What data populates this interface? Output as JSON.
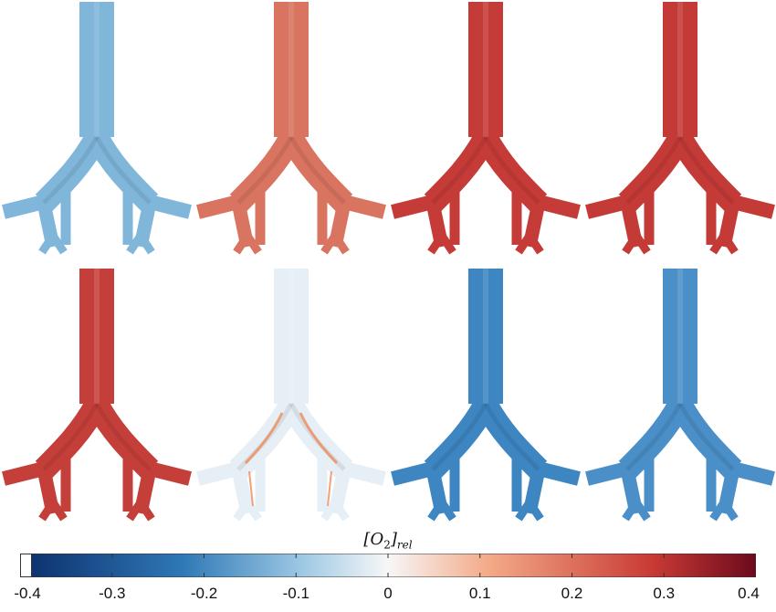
{
  "panels": [
    {
      "id": "r1c1",
      "color": "#7fb6da"
    },
    {
      "id": "r1c2",
      "color": "#d8745f"
    },
    {
      "id": "r1c3",
      "color": "#c53b38"
    },
    {
      "id": "r1c4",
      "color": "#c43a37"
    },
    {
      "id": "r2c1",
      "color": "#c53f3a"
    },
    {
      "id": "r2c2",
      "color": "#e6eff6",
      "accent": "#f08a5a"
    },
    {
      "id": "r2c3",
      "color": "#3d86c2"
    },
    {
      "id": "r2c4",
      "color": "#4a8fc7"
    }
  ],
  "colorbar": {
    "label": "[O2]rel",
    "ticks": [
      "-0.4",
      "-0.3",
      "-0.2",
      "-0.1",
      "0",
      "0.1",
      "0.2",
      "0.3",
      "0.4"
    ],
    "range": [
      -0.4,
      0.4
    ],
    "colors": {
      "min": "#0b2d6b",
      "low": "#2f78b6",
      "midlow": "#9bc7e3",
      "zero": "#f7f7f7",
      "midhigh": "#f3a886",
      "high": "#c83a35",
      "max": "#6b0a1c"
    }
  }
}
